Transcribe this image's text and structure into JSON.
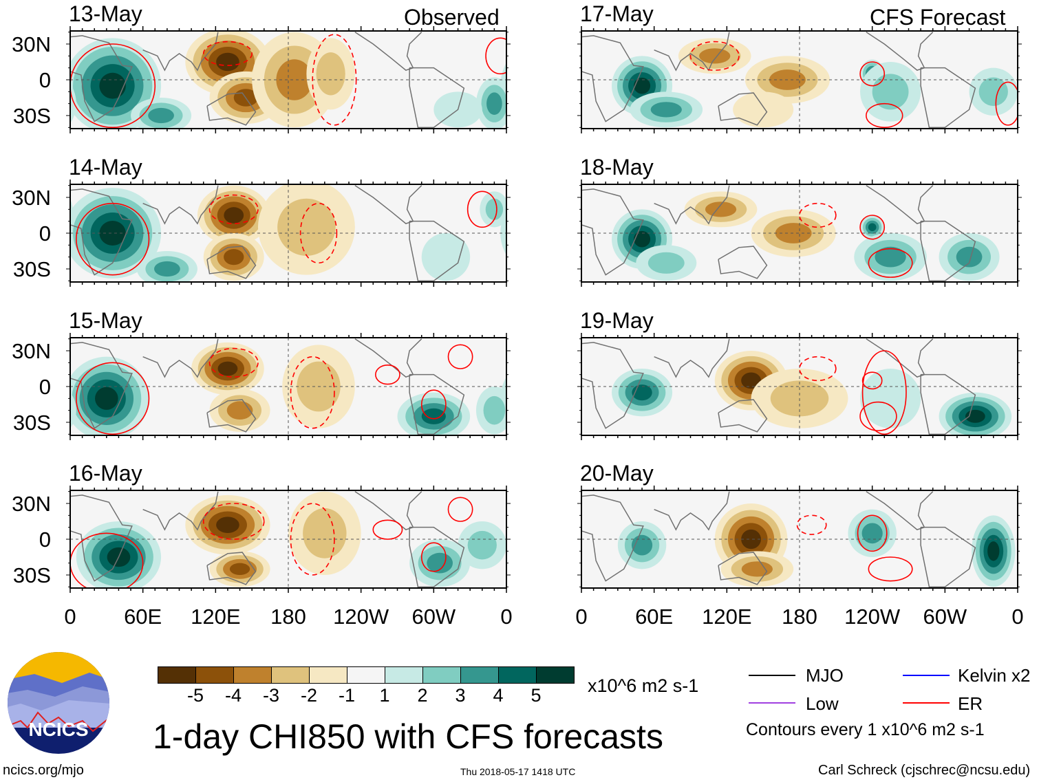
{
  "header": {
    "left_label": "Observed",
    "right_label": "CFS Forecast"
  },
  "lat_labels": [
    "30N",
    "0",
    "30S"
  ],
  "lon_labels": [
    "0",
    "60E",
    "120E",
    "180",
    "120W",
    "60W",
    "0"
  ],
  "colorbar": {
    "colors": [
      "#543005",
      "#8c510a",
      "#bf812d",
      "#dfc27d",
      "#f6e8c3",
      "#f5f5f5",
      "#c7eae5",
      "#80cdc1",
      "#35978f",
      "#01665e",
      "#003c30"
    ],
    "labels": [
      "-5",
      "-4",
      "-3",
      "-2",
      "-1",
      "1",
      "2",
      "3",
      "4",
      "5"
    ],
    "units": "x10^6 m2 s-1"
  },
  "legend": {
    "items": [
      {
        "label": "MJO",
        "color": "#000000"
      },
      {
        "label": "Kelvin x2",
        "color": "#0000ff"
      },
      {
        "label": "Low",
        "color": "#a040e0"
      },
      {
        "label": "ER",
        "color": "#ff0000"
      }
    ],
    "note": "Contours every 1 x10^6 m2 s-1"
  },
  "title": "1-day CHI850 with CFS forecasts",
  "logo_text": "NCICS",
  "footer": {
    "url": "ncics.org/mjo",
    "timestamp": "Thu 2018-05-17 1418 UTC",
    "author": "Carl Schreck (cjschrec@ncsu.edu)"
  },
  "chart_data": {
    "type": "heatmap",
    "title": "1-day CHI850 with CFS forecasts",
    "xlim": [
      0,
      360
    ],
    "ylim": [
      -40,
      40
    ],
    "levels": [
      -5,
      -4,
      -3,
      -2,
      -1,
      1,
      2,
      3,
      4,
      5
    ],
    "panels": [
      {
        "date": "13-May",
        "source": "Observed",
        "anoms": [
          {
            "lon": 35,
            "lat": -5,
            "rlon": 40,
            "rlat": 40,
            "v": 5
          },
          {
            "lon": 75,
            "lat": -30,
            "rlon": 25,
            "rlat": 15,
            "v": 3
          },
          {
            "lon": 130,
            "lat": 15,
            "rlon": 35,
            "rlat": 28,
            "v": -5
          },
          {
            "lon": 145,
            "lat": -15,
            "rlon": 30,
            "rlat": 22,
            "v": -4
          },
          {
            "lon": 185,
            "lat": 0,
            "rlon": 35,
            "rlat": 40,
            "v": -3
          },
          {
            "lon": 215,
            "lat": 5,
            "rlon": 20,
            "rlat": 30,
            "v": -2
          },
          {
            "lon": 350,
            "lat": -20,
            "rlon": 15,
            "rlat": 22,
            "v": 3
          },
          {
            "lon": 320,
            "lat": -25,
            "rlon": 20,
            "rlat": 15,
            "v": 1
          }
        ],
        "er": [
          {
            "lon": 35,
            "lat": -5,
            "rlon": 35,
            "rlat": 35,
            "dash": false
          },
          {
            "lon": 130,
            "lat": 22,
            "rlon": 20,
            "rlat": 10,
            "dash": true
          },
          {
            "lon": 218,
            "lat": 0,
            "rlon": 18,
            "rlat": 38,
            "dash": true
          },
          {
            "lon": 355,
            "lat": 20,
            "rlon": 12,
            "rlat": 15,
            "dash": false
          }
        ]
      },
      {
        "date": "14-May",
        "source": "Observed",
        "anoms": [
          {
            "lon": 35,
            "lat": 0,
            "rlon": 40,
            "rlat": 38,
            "v": 5
          },
          {
            "lon": 80,
            "lat": -30,
            "rlon": 25,
            "rlat": 15,
            "v": 3
          },
          {
            "lon": 135,
            "lat": 15,
            "rlon": 30,
            "rlat": 25,
            "v": -5
          },
          {
            "lon": 135,
            "lat": -20,
            "rlon": 25,
            "rlat": 20,
            "v": -4
          },
          {
            "lon": 195,
            "lat": 5,
            "rlon": 40,
            "rlat": 40,
            "v": -2
          },
          {
            "lon": 310,
            "lat": -20,
            "rlon": 20,
            "rlat": 20,
            "v": 1
          },
          {
            "lon": 350,
            "lat": 20,
            "rlon": 12,
            "rlat": 15,
            "v": 2
          }
        ],
        "er": [
          {
            "lon": 35,
            "lat": -5,
            "rlon": 30,
            "rlat": 30,
            "dash": false
          },
          {
            "lon": 135,
            "lat": 20,
            "rlon": 20,
            "rlat": 12,
            "dash": true
          },
          {
            "lon": 205,
            "lat": 0,
            "rlon": 15,
            "rlat": 25,
            "dash": true
          },
          {
            "lon": 340,
            "lat": 20,
            "rlon": 12,
            "rlat": 15,
            "dash": false
          }
        ]
      },
      {
        "date": "15-May",
        "source": "Observed",
        "anoms": [
          {
            "lon": 30,
            "lat": -10,
            "rlon": 35,
            "rlat": 35,
            "v": 5
          },
          {
            "lon": 130,
            "lat": 15,
            "rlon": 30,
            "rlat": 22,
            "v": -5
          },
          {
            "lon": 140,
            "lat": -20,
            "rlon": 25,
            "rlat": 18,
            "v": -3
          },
          {
            "lon": 205,
            "lat": 0,
            "rlon": 30,
            "rlat": 35,
            "v": -2
          },
          {
            "lon": 300,
            "lat": -25,
            "rlon": 30,
            "rlat": 20,
            "v": 4
          },
          {
            "lon": 350,
            "lat": -20,
            "rlon": 15,
            "rlat": 20,
            "v": 2
          }
        ],
        "er": [
          {
            "lon": 35,
            "lat": -10,
            "rlon": 30,
            "rlat": 30,
            "dash": false
          },
          {
            "lon": 135,
            "lat": 20,
            "rlon": 20,
            "rlat": 12,
            "dash": true
          },
          {
            "lon": 200,
            "lat": -5,
            "rlon": 18,
            "rlat": 30,
            "dash": true
          },
          {
            "lon": 262,
            "lat": 10,
            "rlon": 10,
            "rlat": 8,
            "dash": false
          },
          {
            "lon": 300,
            "lat": -15,
            "rlon": 10,
            "rlat": 12,
            "dash": false
          },
          {
            "lon": 322,
            "lat": 25,
            "rlon": 10,
            "rlat": 10,
            "dash": false
          }
        ]
      },
      {
        "date": "16-May",
        "source": "Observed",
        "anoms": [
          {
            "lon": 40,
            "lat": -15,
            "rlon": 35,
            "rlat": 30,
            "v": 5
          },
          {
            "lon": 130,
            "lat": 12,
            "rlon": 35,
            "rlat": 25,
            "v": -5
          },
          {
            "lon": 140,
            "lat": -25,
            "rlon": 25,
            "rlat": 15,
            "v": -4
          },
          {
            "lon": 210,
            "lat": 5,
            "rlon": 30,
            "rlat": 35,
            "v": -2
          },
          {
            "lon": 305,
            "lat": -20,
            "rlon": 25,
            "rlat": 20,
            "v": 3
          },
          {
            "lon": 340,
            "lat": -5,
            "rlon": 20,
            "rlat": 20,
            "v": 2
          }
        ],
        "er": [
          {
            "lon": 30,
            "lat": -20,
            "rlon": 30,
            "rlat": 25,
            "dash": false
          },
          {
            "lon": 135,
            "lat": 15,
            "rlon": 25,
            "rlat": 15,
            "dash": true
          },
          {
            "lon": 200,
            "lat": 0,
            "rlon": 18,
            "rlat": 30,
            "dash": true
          },
          {
            "lon": 262,
            "lat": 8,
            "rlon": 12,
            "rlat": 8,
            "dash": false
          },
          {
            "lon": 300,
            "lat": -15,
            "rlon": 10,
            "rlat": 12,
            "dash": false
          },
          {
            "lon": 322,
            "lat": 25,
            "rlon": 10,
            "rlat": 10,
            "dash": false
          }
        ]
      },
      {
        "date": "17-May",
        "source": "CFS Forecast",
        "anoms": [
          {
            "lon": 50,
            "lat": -5,
            "rlon": 25,
            "rlat": 25,
            "v": 5
          },
          {
            "lon": 70,
            "lat": -25,
            "rlon": 30,
            "rlat": 15,
            "v": 3
          },
          {
            "lon": 110,
            "lat": 20,
            "rlon": 30,
            "rlat": 15,
            "v": -3
          },
          {
            "lon": 170,
            "lat": 0,
            "rlon": 35,
            "rlat": 20,
            "v": -3
          },
          {
            "lon": 150,
            "lat": -25,
            "rlon": 25,
            "rlat": 15,
            "v": -1
          },
          {
            "lon": 240,
            "lat": 5,
            "rlon": 10,
            "rlat": 12,
            "v": 4
          },
          {
            "lon": 255,
            "lat": -10,
            "rlon": 25,
            "rlat": 25,
            "v": 2
          },
          {
            "lon": 340,
            "lat": -10,
            "rlon": 20,
            "rlat": 20,
            "v": 2
          }
        ],
        "er": [
          {
            "lon": 110,
            "lat": 20,
            "rlon": 20,
            "rlat": 12,
            "dash": true
          },
          {
            "lon": 240,
            "lat": 5,
            "rlon": 10,
            "rlat": 10,
            "dash": false
          },
          {
            "lon": 250,
            "lat": -30,
            "rlon": 15,
            "rlat": 10,
            "dash": false
          },
          {
            "lon": 352,
            "lat": -20,
            "rlon": 10,
            "rlat": 18,
            "dash": false
          }
        ]
      },
      {
        "date": "18-May",
        "source": "CFS Forecast",
        "anoms": [
          {
            "lon": 50,
            "lat": -5,
            "rlon": 25,
            "rlat": 25,
            "v": 5
          },
          {
            "lon": 70,
            "lat": -25,
            "rlon": 25,
            "rlat": 15,
            "v": 2
          },
          {
            "lon": 115,
            "lat": 20,
            "rlon": 30,
            "rlat": 15,
            "v": -3
          },
          {
            "lon": 175,
            "lat": 0,
            "rlon": 35,
            "rlat": 20,
            "v": -3
          },
          {
            "lon": 240,
            "lat": 5,
            "rlon": 10,
            "rlat": 10,
            "v": 4
          },
          {
            "lon": 255,
            "lat": -20,
            "rlon": 30,
            "rlat": 20,
            "v": 3
          },
          {
            "lon": 320,
            "lat": -20,
            "rlon": 25,
            "rlat": 20,
            "v": 3
          }
        ],
        "er": [
          {
            "lon": 240,
            "lat": 5,
            "rlon": 10,
            "rlat": 10,
            "dash": false
          },
          {
            "lon": 255,
            "lat": -25,
            "rlon": 18,
            "rlat": 12,
            "dash": false
          },
          {
            "lon": 195,
            "lat": 15,
            "rlon": 15,
            "rlat": 10,
            "dash": true
          }
        ]
      },
      {
        "date": "19-May",
        "source": "CFS Forecast",
        "anoms": [
          {
            "lon": 50,
            "lat": -5,
            "rlon": 25,
            "rlat": 20,
            "v": 4
          },
          {
            "lon": 140,
            "lat": 5,
            "rlon": 30,
            "rlat": 25,
            "v": -5
          },
          {
            "lon": 180,
            "lat": -10,
            "rlon": 40,
            "rlat": 25,
            "v": -2
          },
          {
            "lon": 325,
            "lat": -25,
            "rlon": 30,
            "rlat": 20,
            "v": 5
          },
          {
            "lon": 255,
            "lat": -10,
            "rlon": 25,
            "rlat": 25,
            "v": 1
          }
        ],
        "er": [
          {
            "lon": 240,
            "lat": 5,
            "rlon": 8,
            "rlat": 7,
            "dash": false
          },
          {
            "lon": 245,
            "lat": -25,
            "rlon": 15,
            "rlat": 12,
            "dash": false
          },
          {
            "lon": 250,
            "lat": -5,
            "rlon": 18,
            "rlat": 35,
            "dash": false
          },
          {
            "lon": 195,
            "lat": 15,
            "rlon": 15,
            "rlat": 10,
            "dash": true
          }
        ]
      },
      {
        "date": "20-May",
        "source": "CFS Forecast",
        "anoms": [
          {
            "lon": 50,
            "lat": -5,
            "rlon": 20,
            "rlat": 20,
            "v": 3
          },
          {
            "lon": 140,
            "lat": 0,
            "rlon": 30,
            "rlat": 30,
            "v": -5
          },
          {
            "lon": 145,
            "lat": -25,
            "rlon": 30,
            "rlat": 15,
            "v": -3
          },
          {
            "lon": 240,
            "lat": 5,
            "rlon": 20,
            "rlat": 20,
            "v": 3
          },
          {
            "lon": 340,
            "lat": -10,
            "rlon": 18,
            "rlat": 30,
            "v": 5
          }
        ],
        "er": [
          {
            "lon": 240,
            "lat": 5,
            "rlon": 12,
            "rlat": 15,
            "dash": false
          },
          {
            "lon": 255,
            "lat": -25,
            "rlon": 18,
            "rlat": 10,
            "dash": false
          },
          {
            "lon": 190,
            "lat": 12,
            "rlon": 12,
            "rlat": 8,
            "dash": true
          }
        ]
      }
    ]
  }
}
